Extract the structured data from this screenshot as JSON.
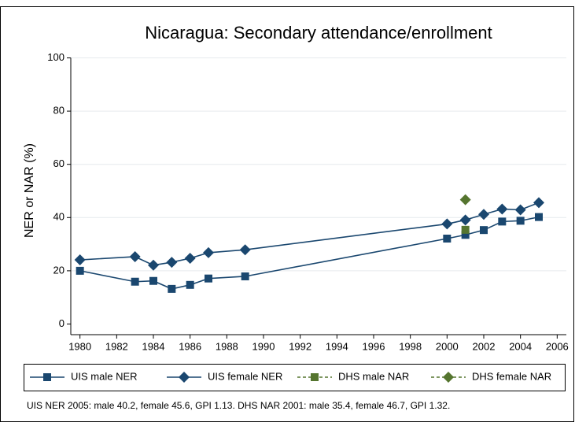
{
  "chart_data": {
    "type": "line",
    "title": "Nicaragua: Secondary attendance/enrollment",
    "y_label": "NER or NAR (%)",
    "note": "UIS NER 2005: male 40.2, female 45.6, GPI 1.13. DHS NAR 2001: male 35.4, female 46.7, GPI 1.32.",
    "xlim": [
      1979.5,
      2006.5
    ],
    "xticks": [
      1980,
      1982,
      1984,
      1986,
      1988,
      1990,
      1992,
      1994,
      1996,
      1998,
      2000,
      2002,
      2004,
      2006
    ],
    "ylim": [
      -4,
      104
    ],
    "yticks": [
      0,
      20,
      40,
      60,
      80,
      100
    ],
    "grid": true,
    "legend": "bottom",
    "series": [
      {
        "name": "UIS male NER",
        "color": "#1a476f",
        "marker": "square",
        "dashed": false,
        "x": [
          1980,
          1983,
          1984,
          1985,
          1986,
          1987,
          1989,
          2000,
          2001,
          2002,
          2003,
          2004,
          2005
        ],
        "values": [
          20.0,
          15.9,
          16.2,
          13.2,
          14.7,
          17.1,
          17.9,
          32.1,
          33.5,
          35.3,
          38.5,
          38.8,
          40.2
        ]
      },
      {
        "name": "UIS female NER",
        "color": "#1a476f",
        "marker": "diamond",
        "dashed": false,
        "x": [
          1980,
          1983,
          1984,
          1985,
          1986,
          1987,
          1989,
          2000,
          2001,
          2002,
          2003,
          2004,
          2005
        ],
        "values": [
          24.1,
          25.3,
          22.1,
          23.2,
          24.7,
          26.8,
          27.9,
          37.6,
          39.1,
          41.2,
          43.2,
          42.9,
          45.6
        ]
      },
      {
        "name": "DHS male NAR",
        "color": "#55752f",
        "marker": "square",
        "dashed": true,
        "x": [
          2001
        ],
        "values": [
          35.4
        ]
      },
      {
        "name": "DHS female NAR",
        "color": "#55752f",
        "marker": "diamond",
        "dashed": true,
        "x": [
          2001
        ],
        "values": [
          46.7
        ]
      }
    ]
  }
}
